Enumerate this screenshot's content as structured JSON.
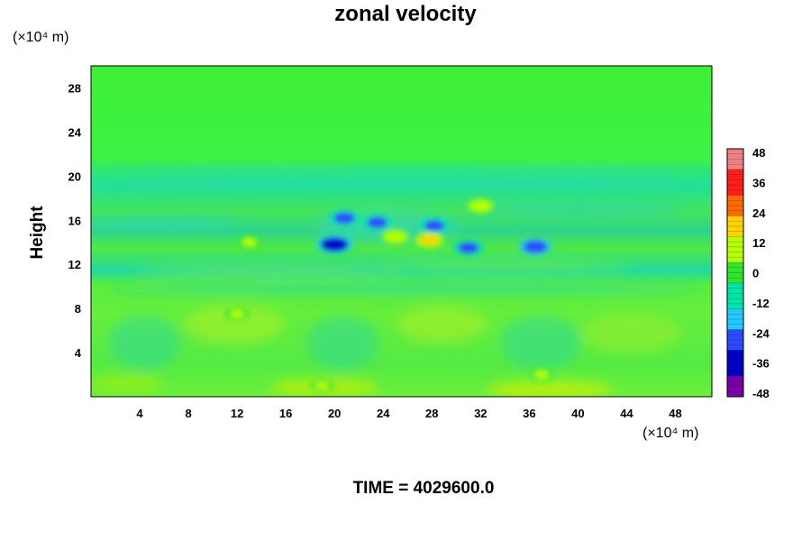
{
  "chart_data": {
    "type": "heatmap",
    "title": "zonal velocity",
    "ylabel": "Height",
    "x_unit": "(×10⁴ m)",
    "y_unit": "(×10⁴ m)",
    "x_ticks": [
      4,
      8,
      12,
      16,
      20,
      24,
      28,
      32,
      36,
      40,
      44,
      48
    ],
    "y_ticks": [
      4,
      8,
      12,
      16,
      20,
      24,
      28
    ],
    "xlim": [
      0,
      51
    ],
    "ylim": [
      0,
      30
    ],
    "colorbar": {
      "ticks": [
        48,
        36,
        24,
        12,
        0,
        -12,
        -24,
        -36,
        -48
      ],
      "range": [
        -48,
        48
      ],
      "colors": [
        "#7a00a8",
        "#0000c8",
        "#2a4cff",
        "#22c8ff",
        "#00e6a8",
        "#2ee62e",
        "#b4ff00",
        "#ffd200",
        "#ff6a00",
        "#ff1e1e",
        "#f08080"
      ]
    },
    "features": [
      {
        "x": 20,
        "y": 13.8,
        "value": -36
      },
      {
        "x": 20.8,
        "y": 16.2,
        "value": -24
      },
      {
        "x": 23.5,
        "y": 15.8,
        "value": -22
      },
      {
        "x": 28.2,
        "y": 15.5,
        "value": -22
      },
      {
        "x": 31,
        "y": 13.5,
        "value": -24
      },
      {
        "x": 36.5,
        "y": 13.6,
        "value": -28
      },
      {
        "x": 27.8,
        "y": 14.2,
        "value": 18
      },
      {
        "x": 25,
        "y": 14.5,
        "value": 12
      },
      {
        "x": 32,
        "y": 17.3,
        "value": 10
      },
      {
        "x": 13,
        "y": 14,
        "value": 8
      },
      {
        "x": 12,
        "y": 7.5,
        "value": 6
      },
      {
        "x": 37,
        "y": 2,
        "value": 8
      },
      {
        "x": 19,
        "y": 1,
        "value": 6
      }
    ],
    "grid": false,
    "legend": "colorbar-right"
  },
  "time_label": "TIME = 4029600.0"
}
